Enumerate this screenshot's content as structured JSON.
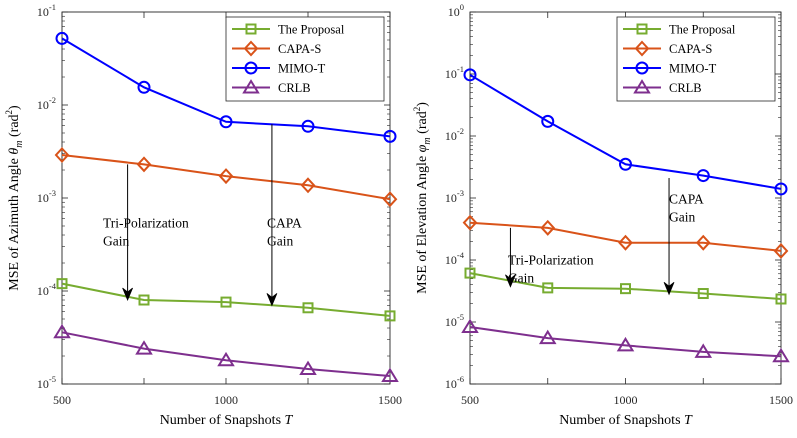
{
  "chart_data": [
    {
      "type": "line",
      "xscale": "linear",
      "yscale": "log",
      "x": [
        500,
        750,
        1000,
        1250,
        1500
      ],
      "xlim": [
        500,
        1500
      ],
      "ylim": [
        1e-05,
        0.1
      ],
      "xticks": [
        500,
        1000,
        1500
      ],
      "xticklabels": [
        "500",
        "1000",
        "1500"
      ],
      "yticks": [
        {
          "value": 1e-05,
          "base": "10",
          "exp": "-5"
        },
        {
          "value": 0.0001,
          "base": "10",
          "exp": "-4"
        },
        {
          "value": 0.001,
          "base": "10",
          "exp": "-3"
        },
        {
          "value": 0.01,
          "base": "10",
          "exp": "-2"
        },
        {
          "value": 0.1,
          "base": "10",
          "exp": "-1"
        }
      ],
      "xlabel": {
        "text": "Number of Snapshots ",
        "symbol": "T"
      },
      "ylabel": {
        "text": "MSE of Azimuth Angle ",
        "symbol": "θ",
        "sub": "m",
        "unit_pre": " (rad",
        "unit_sup": "2",
        "unit_post": ")"
      },
      "grid": false,
      "legend_position": "top-right",
      "series": [
        {
          "name": "The Proposal",
          "marker": "square",
          "color": "#77ac30",
          "values": [
            0.00012,
            8e-05,
            7.6e-05,
            6.6e-05,
            5.4e-05
          ]
        },
        {
          "name": "CAPA-S",
          "marker": "diamond",
          "color": "#d95319",
          "values": [
            0.0029,
            0.0023,
            0.00172,
            0.00137,
            0.00097
          ]
        },
        {
          "name": "MIMO-T",
          "marker": "circle",
          "color": "#0000ff",
          "values": [
            0.052,
            0.0155,
            0.0066,
            0.0059,
            0.0046
          ]
        },
        {
          "name": "CRLB",
          "marker": "triangle",
          "color": "#7e2f8e",
          "values": [
            3.6e-05,
            2.4e-05,
            1.8e-05,
            1.45e-05,
            1.22e-05
          ]
        }
      ],
      "annotations": [
        {
          "lines": [
            "Tri-Polarization",
            "Gain"
          ],
          "x_text": 625,
          "y_text": 0.00048,
          "arrow_x": 700,
          "arrow_y_from": 0.0023,
          "arrow_y_to": 8e-05
        },
        {
          "lines": [
            "CAPA",
            "Gain"
          ],
          "x_text": 1125,
          "y_text": 0.00048,
          "arrow_x": 1140,
          "arrow_y_from": 0.0062,
          "arrow_y_to": 7e-05
        }
      ]
    },
    {
      "type": "line",
      "xscale": "linear",
      "yscale": "log",
      "x": [
        500,
        750,
        1000,
        1250,
        1500
      ],
      "xlim": [
        500,
        1500
      ],
      "ylim": [
        1e-06,
        1
      ],
      "xticks": [
        500,
        1000,
        1500
      ],
      "xticklabels": [
        "500",
        "1000",
        "1500"
      ],
      "yticks": [
        {
          "value": 1e-06,
          "base": "10",
          "exp": "-6"
        },
        {
          "value": 1e-05,
          "base": "10",
          "exp": "-5"
        },
        {
          "value": 0.0001,
          "base": "10",
          "exp": "-4"
        },
        {
          "value": 0.001,
          "base": "10",
          "exp": "-3"
        },
        {
          "value": 0.01,
          "base": "10",
          "exp": "-2"
        },
        {
          "value": 0.1,
          "base": "10",
          "exp": "-1"
        },
        {
          "value": 1,
          "base": "10",
          "exp": "0"
        }
      ],
      "xlabel": {
        "text": "Number of Snapshots ",
        "symbol": "T"
      },
      "ylabel": {
        "text": "MSE of Elevation Angle ",
        "symbol": "φ",
        "sub": "m",
        "unit_pre": " (rad",
        "unit_sup": "2",
        "unit_post": ")"
      },
      "grid": false,
      "legend_position": "top-right",
      "series": [
        {
          "name": "The Proposal",
          "marker": "square",
          "color": "#77ac30",
          "values": [
            6.15e-05,
            3.55e-05,
            3.45e-05,
            2.88e-05,
            2.35e-05
          ]
        },
        {
          "name": "CAPA-S",
          "marker": "diamond",
          "color": "#d95319",
          "values": [
            0.0004,
            0.00033,
            0.00019,
            0.00019,
            0.00014
          ]
        },
        {
          "name": "MIMO-T",
          "marker": "circle",
          "color": "#0000ff",
          "values": [
            0.097,
            0.0172,
            0.0035,
            0.0023,
            0.0014
          ]
        },
        {
          "name": "CRLB",
          "marker": "triangle",
          "color": "#7e2f8e",
          "values": [
            8.3e-06,
            5.5e-06,
            4.2e-06,
            3.3e-06,
            2.8e-06
          ]
        }
      ],
      "annotations": [
        {
          "lines": [
            "Tri-Polarization",
            "Gain"
          ],
          "x_text": 622,
          "y_text": 8.5e-05,
          "arrow_x": 630,
          "arrow_y_from": 0.00033,
          "arrow_y_to": 3.7e-05
        },
        {
          "lines": [
            "CAPA",
            "Gain"
          ],
          "x_text": 1140,
          "y_text": 0.00082,
          "arrow_x": 1140,
          "arrow_y_from": 0.0021,
          "arrow_y_to": 2.8e-05
        }
      ]
    }
  ]
}
